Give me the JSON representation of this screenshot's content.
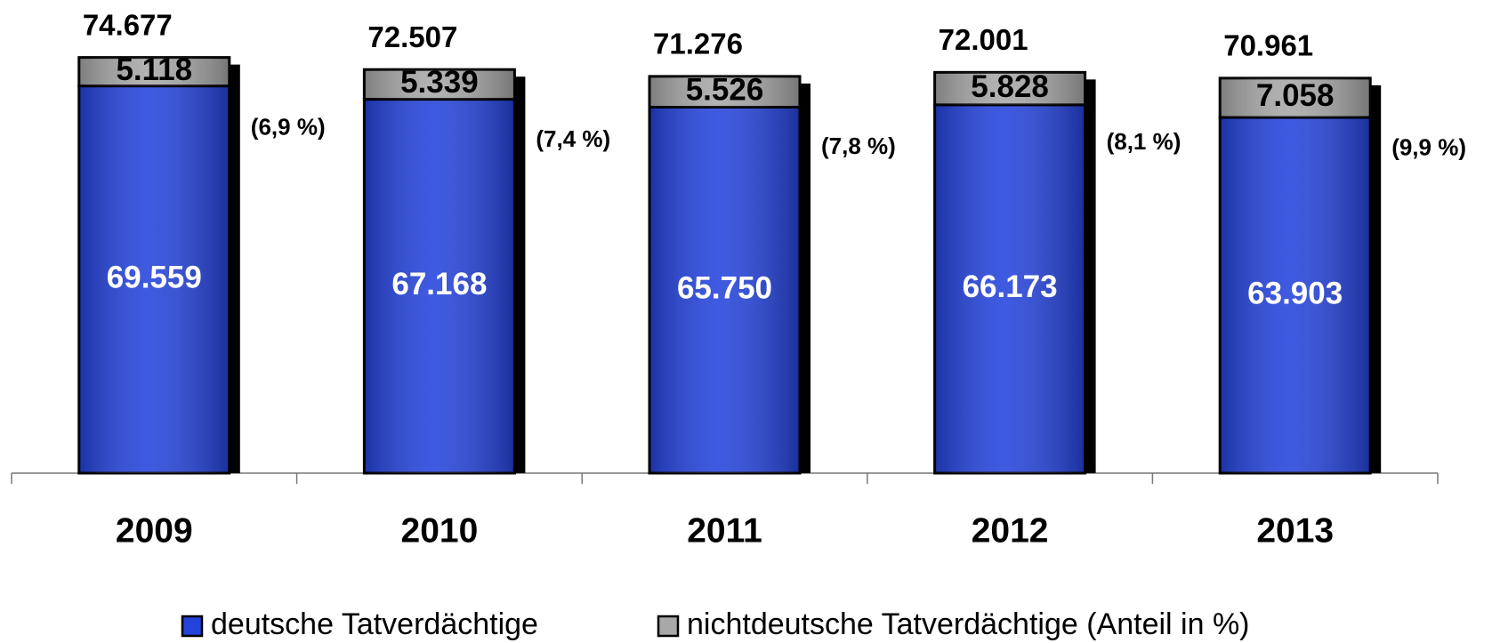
{
  "chart_data": {
    "type": "bar",
    "stacked": true,
    "categories": [
      "2009",
      "2010",
      "2011",
      "2012",
      "2013"
    ],
    "series": [
      {
        "name": "deutsche Tatverdächtige",
        "color": "#2443dc",
        "values": [
          69559,
          67168,
          65750,
          66173,
          63903
        ],
        "value_labels": [
          "69.559",
          "67.168",
          "65.750",
          "66.173",
          "63.903"
        ]
      },
      {
        "name": "nichtdeutsche Tatverdächtige (Anteil in %)",
        "color": "#a8a8a8",
        "values": [
          5118,
          5339,
          5526,
          5828,
          7058
        ],
        "value_labels": [
          "5.118",
          "5.339",
          "5.526",
          "5.828",
          "7.058"
        ]
      }
    ],
    "totals": {
      "values": [
        74677,
        72507,
        71276,
        72001,
        70961
      ],
      "value_labels": [
        "74.677",
        "72.507",
        "71.276",
        "72.001",
        "70.961"
      ]
    },
    "shares": {
      "values": [
        6.9,
        7.4,
        7.8,
        8.1,
        9.9
      ],
      "value_labels": [
        "(6,9 %)",
        "(7,4 %)",
        "(7,8 %)",
        "(8,1 %)",
        "(9,9 %)"
      ]
    },
    "ylim": [
      0,
      85000
    ],
    "grid": false,
    "legend": "bottom"
  }
}
